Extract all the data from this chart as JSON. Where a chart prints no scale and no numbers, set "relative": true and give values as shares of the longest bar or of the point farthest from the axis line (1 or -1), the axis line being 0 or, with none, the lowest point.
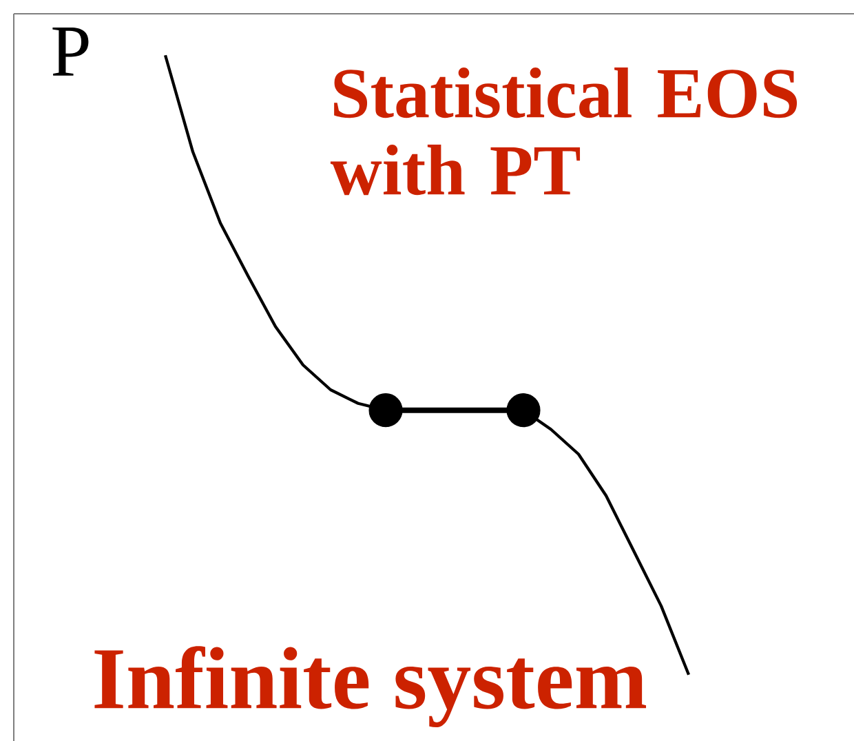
{
  "chart_data": {
    "type": "line",
    "relative": true,
    "title": "Statistical EOS with PT",
    "ylabel": "P",
    "annotations": [
      "Infinite system"
    ],
    "categories": [
      null,
      null,
      null,
      null,
      null,
      null,
      null,
      null,
      null,
      null,
      null,
      null,
      null,
      null,
      null,
      null,
      null,
      null,
      null,
      null,
      null,
      null,
      null,
      null,
      null,
      null,
      null,
      null,
      null,
      null,
      null,
      null
    ],
    "series": [
      {
        "color": "#000000",
        "marker": "none",
        "values": [
          null,
          null,
          null,
          null,
          null,
          null,
          1.0,
          0.844,
          0.729,
          0.644,
          0.562,
          0.5,
          0.46,
          0.438,
          0.427,
          0.427,
          0.427,
          0.427,
          0.427,
          0.427,
          0.396,
          0.356,
          0.289,
          0.2,
          0.111,
          0.0,
          null,
          null,
          null,
          null,
          null,
          null
        ]
      },
      {
        "type": "line",
        "color": "#000000",
        "marker": "circle",
        "values": [
          null,
          null,
          null,
          null,
          null,
          null,
          null,
          null,
          null,
          null,
          null,
          null,
          null,
          null,
          0.427,
          null,
          null,
          null,
          null,
          0.427,
          null,
          null,
          null,
          null,
          null,
          null,
          null,
          null,
          null,
          null,
          null,
          null
        ]
      }
    ]
  }
}
